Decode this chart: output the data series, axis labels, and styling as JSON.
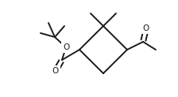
{
  "bg_color": "#ffffff",
  "line_color": "#1a1a1a",
  "line_width": 1.4,
  "font_size": 7.5,
  "figsize": [
    2.24,
    1.23
  ],
  "dpi": 100,
  "xlim": [
    0,
    224
  ],
  "ylim": [
    0,
    123
  ]
}
